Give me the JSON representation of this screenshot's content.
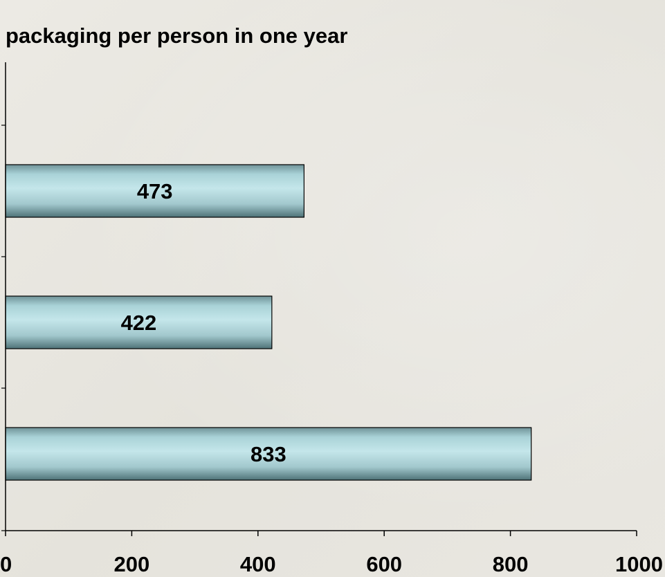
{
  "chart_data": {
    "type": "bar",
    "orientation": "horizontal",
    "title": "packaging per person in one year",
    "values": [
      473,
      422,
      833
    ],
    "data_labels": [
      "473",
      "422",
      "833"
    ],
    "xlim": [
      0,
      1000
    ],
    "x_ticks": [
      0,
      200,
      400,
      600,
      800,
      1000
    ],
    "x_tick_labels": [
      "0",
      "200",
      "400",
      "600",
      "800",
      "1000"
    ],
    "grid": false,
    "legend": "none",
    "colors": {
      "bar_fill": "#b8dde2",
      "bar_shade": "#5a7f84",
      "axis": "#000000"
    }
  }
}
